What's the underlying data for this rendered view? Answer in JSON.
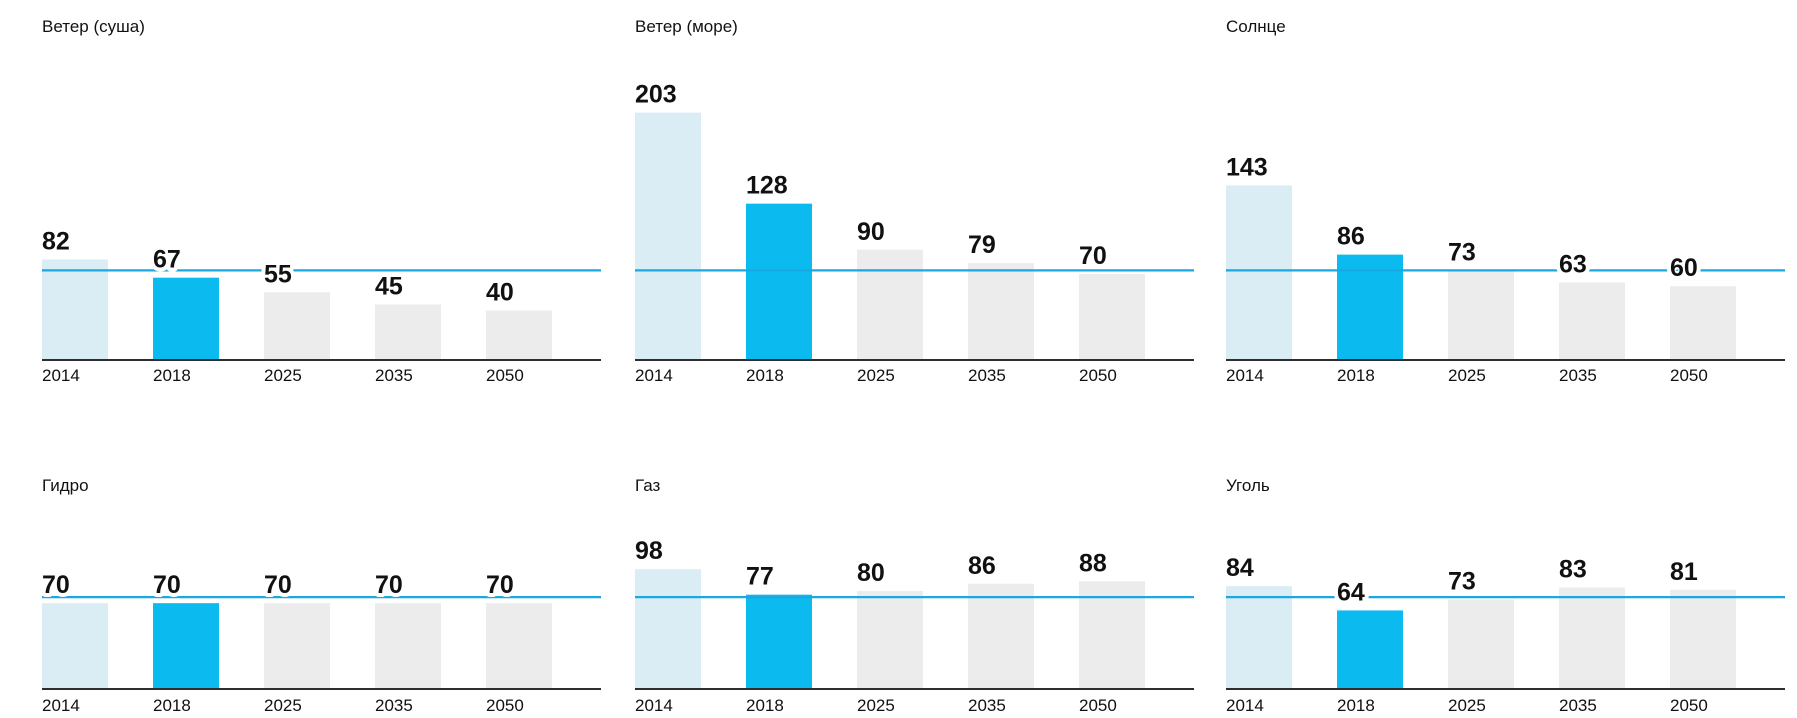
{
  "chart_data": [
    {
      "type": "bar",
      "title": "Ветер (суша)",
      "categories": [
        "2014",
        "2018",
        "2025",
        "2035",
        "2050"
      ],
      "values": [
        82,
        67,
        55,
        45,
        40
      ],
      "colors": [
        "#daedf5",
        "#0bbbef",
        "#ececec",
        "#ececec",
        "#ececec"
      ],
      "ylim": [
        0,
        220
      ],
      "reference_line": {
        "value": 73,
        "color": "#1ba7e0"
      }
    },
    {
      "type": "bar",
      "title": "Ветер (море)",
      "categories": [
        "2014",
        "2018",
        "2025",
        "2035",
        "2050"
      ],
      "values": [
        203,
        128,
        90,
        79,
        70
      ],
      "colors": [
        "#daedf5",
        "#0bbbef",
        "#ececec",
        "#ececec",
        "#ececec"
      ],
      "ylim": [
        0,
        220
      ],
      "reference_line": {
        "value": 73,
        "color": "#1ba7e0"
      }
    },
    {
      "type": "bar",
      "title": "Солнце",
      "categories": [
        "2014",
        "2018",
        "2025",
        "2035",
        "2050"
      ],
      "values": [
        143,
        86,
        73,
        63,
        60
      ],
      "colors": [
        "#daedf5",
        "#0bbbef",
        "#ececec",
        "#ececec",
        "#ececec"
      ],
      "ylim": [
        0,
        220
      ],
      "reference_line": {
        "value": 73,
        "color": "#1ba7e0"
      }
    },
    {
      "type": "bar",
      "title": "Гидро",
      "categories": [
        "2014",
        "2018",
        "2025",
        "2035",
        "2050"
      ],
      "values": [
        70,
        70,
        70,
        70,
        70
      ],
      "colors": [
        "#daedf5",
        "#0bbbef",
        "#ececec",
        "#ececec",
        "#ececec"
      ],
      "ylim": [
        0,
        132
      ],
      "reference_line": {
        "value": 75,
        "color": "#1ba7e0"
      }
    },
    {
      "type": "bar",
      "title": "Газ",
      "categories": [
        "2014",
        "2018",
        "2025",
        "2035",
        "2050"
      ],
      "values": [
        98,
        77,
        80,
        86,
        88
      ],
      "colors": [
        "#daedf5",
        "#0bbbef",
        "#ececec",
        "#ececec",
        "#ececec"
      ],
      "ylim": [
        0,
        132
      ],
      "reference_line": {
        "value": 75,
        "color": "#1ba7e0"
      }
    },
    {
      "type": "bar",
      "title": "Уголь",
      "categories": [
        "2014",
        "2018",
        "2025",
        "2035",
        "2050"
      ],
      "values": [
        84,
        64,
        73,
        83,
        81
      ],
      "colors": [
        "#daedf5",
        "#0bbbef",
        "#ececec",
        "#ececec",
        "#ececec"
      ],
      "ylim": [
        0,
        132
      ],
      "reference_line": {
        "value": 75,
        "color": "#1ba7e0"
      }
    }
  ]
}
